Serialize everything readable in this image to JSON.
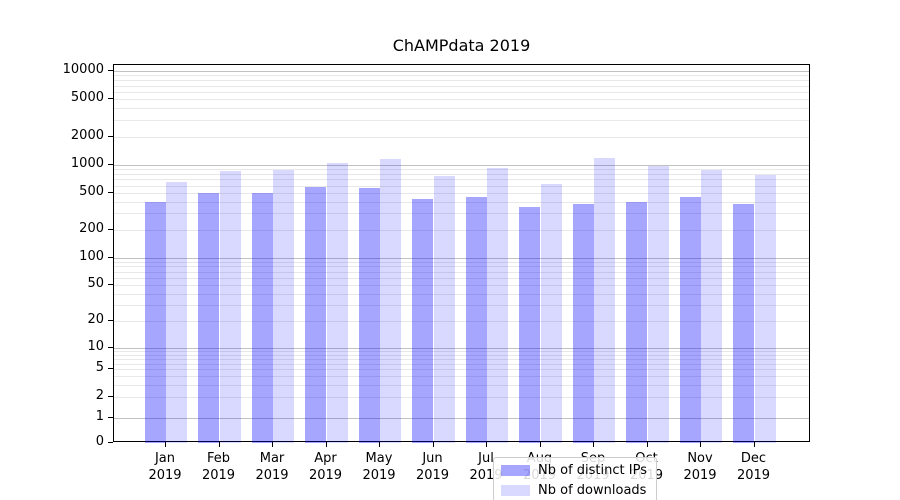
{
  "chart_data": {
    "type": "bar",
    "title": "ChAMPdata 2019",
    "categories": [
      "Jan",
      "Feb",
      "Mar",
      "Apr",
      "May",
      "Jun",
      "Jul",
      "Aug",
      "Sep",
      "Oct",
      "Nov",
      "Dec"
    ],
    "category_year": "2019",
    "series": [
      {
        "name": "Nb of distinct IPs",
        "color": "rgba(0,0,255,0.35)",
        "values": [
          400,
          500,
          500,
          580,
          560,
          430,
          450,
          350,
          380,
          400,
          450,
          380
        ]
      },
      {
        "name": "Nb of downloads",
        "color": "rgba(0,0,255,0.15)",
        "values": [
          650,
          870,
          880,
          1050,
          1150,
          760,
          930,
          630,
          1200,
          980,
          890,
          780
        ]
      }
    ],
    "yscale": "symlog",
    "yticks": [
      0,
      1,
      2,
      5,
      10,
      20,
      50,
      100,
      200,
      500,
      1000,
      2000,
      5000,
      10000
    ],
    "ylim": [
      0,
      11500
    ],
    "xlabel": "",
    "ylabel": "",
    "grid": "horizontal major and minor gridlines",
    "legend_position": "lower center inside axes",
    "colors": {
      "bar_distinct_ips": "#a6a6f8",
      "bar_downloads": "#d9d9fb",
      "major_grid": "#c2c2c2",
      "minor_grid": "#e8e8e8",
      "axis": "#000000",
      "background": "#ffffff"
    }
  }
}
